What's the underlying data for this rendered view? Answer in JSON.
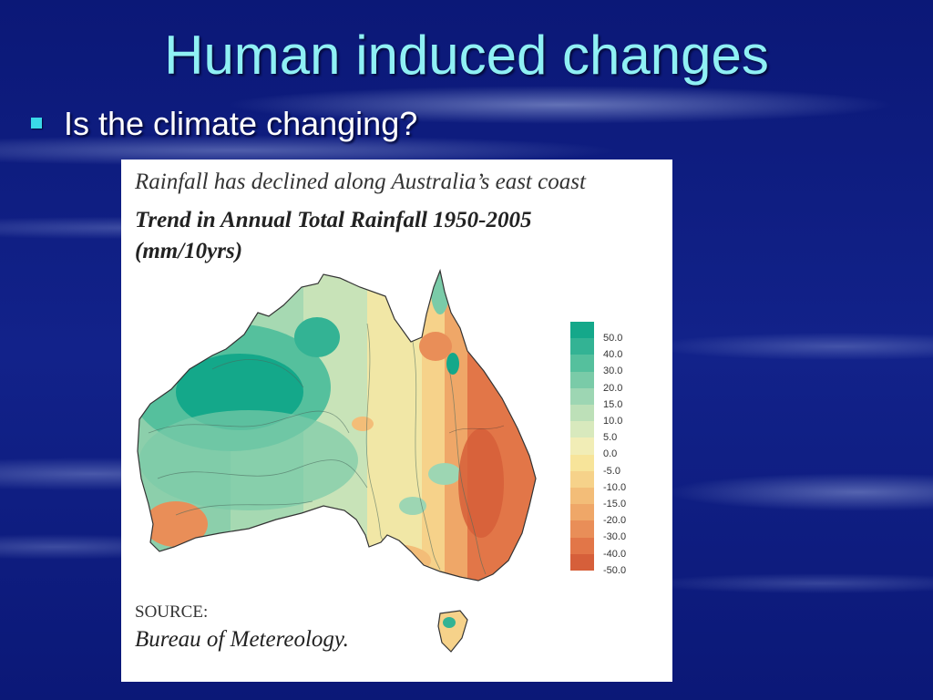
{
  "slide": {
    "title": "Human induced changes",
    "bullet": "Is the climate changing?"
  },
  "figure": {
    "caption_line1": "Rainfall has declined along Australia’s east coast",
    "caption_line2": "Trend in Annual Total Rainfall 1950-2005",
    "caption_line3": "(mm/10yrs)",
    "source_label": "SOURCE:",
    "source_name": "Bureau of Metereology."
  },
  "legend": {
    "items": [
      {
        "label": "50.0",
        "color": "#14a88a"
      },
      {
        "label": "40.0",
        "color": "#33b394"
      },
      {
        "label": "30.0",
        "color": "#55c09d"
      },
      {
        "label": "20.0",
        "color": "#7acba8"
      },
      {
        "label": "15.0",
        "color": "#9dd6b3"
      },
      {
        "label": "10.0",
        "color": "#bde0b8"
      },
      {
        "label": "5.0",
        "color": "#d8e9bd"
      },
      {
        "label": "0.0",
        "color": "#f1edb6"
      },
      {
        "label": "-5.0",
        "color": "#f7e49a"
      },
      {
        "label": "-10.0",
        "color": "#f6d28a"
      },
      {
        "label": "-15.0",
        "color": "#f3bd78"
      },
      {
        "label": "-20.0",
        "color": "#efa768"
      },
      {
        "label": "-30.0",
        "color": "#e98e58"
      },
      {
        "label": "-40.0",
        "color": "#e27648"
      },
      {
        "label": "-50.0",
        "color": "#d65f3a"
      }
    ]
  },
  "colors": {
    "background": "#0c1a7a",
    "title": "#8ff0f4",
    "bullet": "#3ad8e8"
  }
}
